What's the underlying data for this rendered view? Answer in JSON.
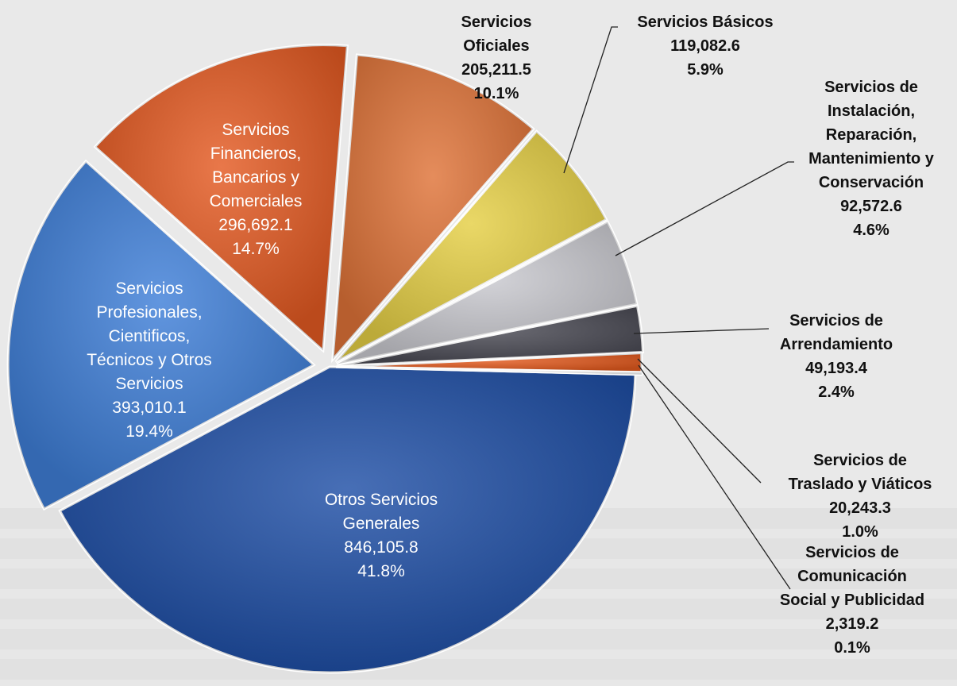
{
  "chart_data": {
    "type": "pie",
    "title": "",
    "slices": [
      {
        "label": "Otros Servicios Generales",
        "value": 846105.8,
        "value_text": "846,105.8",
        "percent_text": "41.8%",
        "color": "#1f4fa6"
      },
      {
        "label": "Servicios Profesionales, Científicos, Técnicos y Otros Servicios",
        "value": 393010.1,
        "value_text": "393,010.1",
        "percent_text": "19.4%",
        "color": "#3f7fd8"
      },
      {
        "label": "Servicios Financieros, Bancarios y Comerciales",
        "value": 296692.1,
        "value_text": "296,692.1",
        "percent_text": "14.7%",
        "color": "#e45a22"
      },
      {
        "label": "Servicios Oficiales",
        "value": 205211.5,
        "value_text": "205,211.5",
        "percent_text": "10.1%",
        "color": "#df7338"
      },
      {
        "label": "Servicios Básicos",
        "value": 119082.6,
        "value_text": "119,082.6",
        "percent_text": "5.9%",
        "color": "#e5cf45"
      },
      {
        "label": "Servicios de Instalación, Reparación, Mantenimiento y Conservación",
        "value": 92572.6,
        "value_text": "92,572.6",
        "percent_text": "4.6%",
        "color": "#c9c9cf"
      },
      {
        "label": "Servicios de Arrendamiento",
        "value": 49193.4,
        "value_text": "49,193.4",
        "percent_text": "2.4%",
        "color": "#4b4b55"
      },
      {
        "label": "Servicios de Traslado y Viáticos",
        "value": 20243.3,
        "value_text": "20,243.3",
        "percent_text": "1.0%",
        "color": "#e35a1e"
      },
      {
        "label": "Servicios de Comunicación Social y Publicidad",
        "value": 2319.2,
        "value_text": "2,319.2",
        "percent_text": "0.1%",
        "color": "#3f7fd8"
      }
    ]
  },
  "labels": {
    "otros": {
      "lines": [
        "Otros Servicios",
        "Generales"
      ]
    },
    "profesionales": {
      "lines": [
        "Servicios",
        "Profesionales,",
        "Cientificos,",
        "Técnicos y Otros",
        "Servicios"
      ]
    },
    "financieros": {
      "lines": [
        "Servicios",
        "Financieros,",
        "Bancarios y",
        "Comerciales"
      ]
    },
    "oficiales": {
      "lines": [
        "Servicios",
        "Oficiales"
      ]
    },
    "basicos": {
      "lines": [
        "Servicios Básicos"
      ]
    },
    "instalacion": {
      "lines": [
        "Servicios de",
        "Instalación,",
        "Reparación,",
        "Mantenimiento y",
        "Conservación"
      ]
    },
    "arrendamiento": {
      "lines": [
        "Servicios de",
        "Arrendamiento"
      ]
    },
    "traslado": {
      "lines": [
        "Servicios de",
        "Traslado y Viáticos"
      ]
    },
    "comunicacion": {
      "lines": [
        "Servicios de",
        "Comunicación",
        "Social y Publicidad"
      ]
    }
  }
}
